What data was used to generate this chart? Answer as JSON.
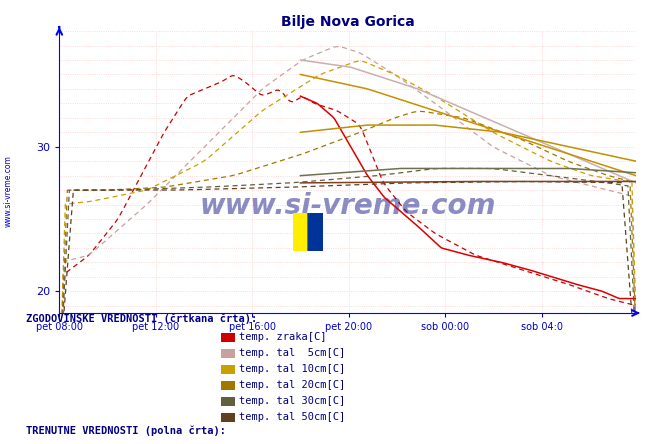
{
  "title": "Bilje Nova Gorica",
  "title_color": "#000080",
  "bg_color": "#ffffff",
  "axis_color": "#0000ff",
  "tick_color": "#0000cc",
  "watermark": "www.si-vreme.com",
  "watermark_color": "#000080",
  "x_labels": [
    "pet 08:00",
    "pet 12:00",
    "pet 16:00",
    "pet 20:00",
    "sob 00:00",
    "sob 04:0"
  ],
  "ylim_min": 18.5,
  "ylim_max": 38.0,
  "yticks": [
    20,
    30
  ],
  "legend1_title": "ZGODOVINSKE VREDNOSTI (črtkana črta):",
  "legend2_title": "TRENUTNE VREDNOSTI (polna črta):",
  "legend_items": [
    {
      "label": "temp. zraka[C]",
      "color_hist": "#cc0000",
      "color_curr": "#dd0000"
    },
    {
      "label": "temp. tal  5cm[C]",
      "color_hist": "#c8a0a0",
      "color_curr": "#c8b0b0"
    },
    {
      "label": "temp. tal 10cm[C]",
      "color_hist": "#c8a000",
      "color_curr": "#c89000"
    },
    {
      "label": "temp. tal 20cm[C]",
      "color_hist": "#a07800",
      "color_curr": "#c09000"
    },
    {
      "label": "temp. tal 30cm[C]",
      "color_hist": "#606040",
      "color_curr": "#707050"
    },
    {
      "label": "temp. tal 50cm[C]",
      "color_hist": "#604020",
      "color_curr": "#804020"
    }
  ],
  "n_points": 288
}
